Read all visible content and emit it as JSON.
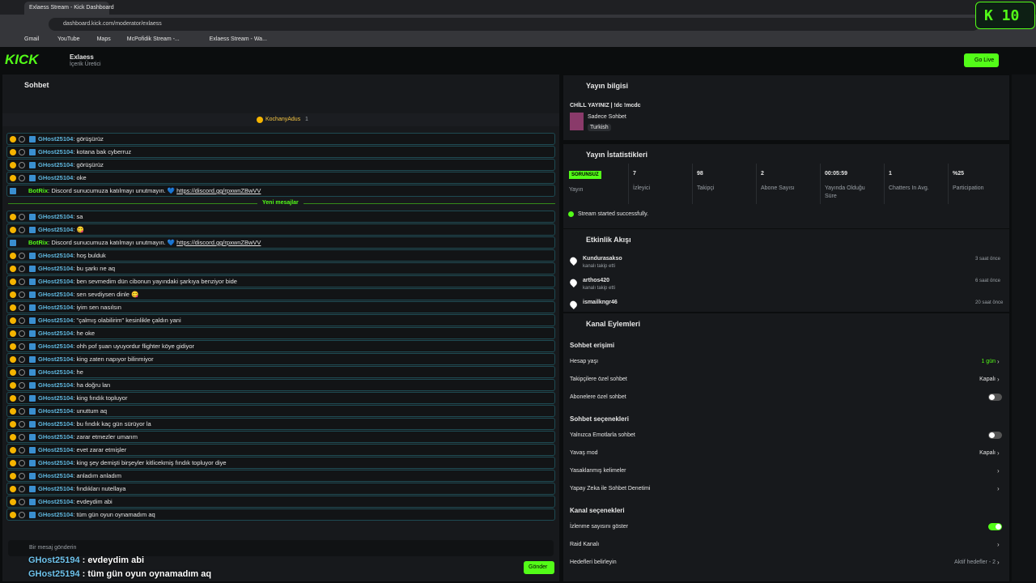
{
  "browser": {
    "tab_title": "Exlaess Stream - Kick Dashboard",
    "url": "dashboard.kick.com/moderator/exlaess",
    "bookmarks": [
      "Gmail",
      "YouTube",
      "Maps",
      "McPofidik Stream -...",
      "Exlaess Stream - Wa..."
    ]
  },
  "header": {
    "logo": "KICK",
    "channel_name": "Exlaess",
    "role": "İçerik Üretici",
    "go_live": "Go Live"
  },
  "overlay_badge": "K 10",
  "chat": {
    "title": "Sohbet",
    "pinned_user": "KochanyAdus",
    "pinned_count": 1,
    "divider": "Yeni mesajlar",
    "messages_before": [
      {
        "user": "GHost25104",
        "text": ": görüşürüz"
      },
      {
        "user": "GHost25104",
        "text": ": kotana bak cyberruz"
      },
      {
        "user": "GHost25104",
        "text": ": görüşürüz"
      },
      {
        "user": "GHost25104",
        "text": ": oke"
      },
      {
        "user": "BotRix",
        "text": ": Discord sunucumuza katılmayı unutmayın. 💙",
        "link": "https://discord.gg/rpxwnZBwVV"
      }
    ],
    "messages_after": [
      {
        "user": "GHost25104",
        "text": ": sa"
      },
      {
        "user": "GHost25104",
        "text": ": 😋"
      },
      {
        "user": "BotRix",
        "text": ": Discord sunucumuza katılmayı unutmayın. 💙",
        "link": "https://discord.gg/rpxwnZBwVV"
      },
      {
        "user": "GHost25104",
        "text": ": hoş bulduk"
      },
      {
        "user": "GHost25104",
        "text": ": bu şarkı ne aq"
      },
      {
        "user": "GHost25104",
        "text": ": ben sevmedim dün cibonun yayındaki şarkıya benziyor bide"
      },
      {
        "user": "GHost25104",
        "text": ": sen sevdiysen dinle 😋"
      },
      {
        "user": "GHost25104",
        "text": ": iyim sen nasılsın"
      },
      {
        "user": "GHost25104",
        "text": ": \"çalmış olabilirim\" kesinlikle çaldın yani"
      },
      {
        "user": "GHost25104",
        "text": ": he oke"
      },
      {
        "user": "GHost25104",
        "text": ": ohh pof şuan uyuyordur flighter köye gidiyor"
      },
      {
        "user": "GHost25104",
        "text": ": king zaten napıyor bilinmiyor"
      },
      {
        "user": "GHost25104",
        "text": ": he"
      },
      {
        "user": "GHost25104",
        "text": ": ha doğru lan"
      },
      {
        "user": "GHost25104",
        "text": ": king fındık topluyor"
      },
      {
        "user": "GHost25104",
        "text": ": unuttum aq"
      },
      {
        "user": "GHost25104",
        "text": ": bu fındık kaç gün sürüyor la"
      },
      {
        "user": "GHost25104",
        "text": ": zarar etmezler umarım"
      },
      {
        "user": "GHost25104",
        "text": ": evet zarar etmişler"
      },
      {
        "user": "GHost25104",
        "text": ": king şey demişti birşeyler kitlicekmiş fındık topluyor diye"
      },
      {
        "user": "GHost25104",
        "text": ": anladım anladım"
      },
      {
        "user": "GHost25104",
        "text": ": fındıkları nutellaya"
      },
      {
        "user": "GHost25104",
        "text": ": evdeydim abi"
      },
      {
        "user": "GHost25104",
        "text": ": tüm gün oyun oynamadım aq"
      }
    ],
    "input_placeholder": "Bir mesaj gönderin",
    "send": "Gönder"
  },
  "overlay_chat": [
    {
      "user": "GHost25194",
      "text": ": evdeydim abi"
    },
    {
      "user": "GHost25194",
      "text": ": tüm gün oyun oynamadım aq"
    }
  ],
  "stream_info": {
    "title": "Yayın bilgisi",
    "stream_title": "CHİLL YAYINIZ | !dc !mcdc",
    "category": "Sadece Sohbet",
    "tag": "Turkish"
  },
  "stats": {
    "title": "Yayın İstatistikleri",
    "status": "SORUNSUZ",
    "status_label": "Yayın",
    "items": [
      {
        "value": 7,
        "label": "İzleyici"
      },
      {
        "value": 98,
        "label": "Takipçi"
      },
      {
        "value": 2,
        "label": "Abone Sayısı"
      },
      {
        "value": "00:05:59",
        "label": "Yayında Olduğu Süre"
      },
      {
        "value": 1,
        "label": "Chatters In Avg."
      },
      {
        "value": "%25",
        "label": "Participation"
      }
    ],
    "notice": "Stream started successfully."
  },
  "activity": {
    "title": "Etkinlik Akışı",
    "events": [
      {
        "user": "Kundurasakso",
        "action": "kanalı takip etti",
        "time": "3 saat önce"
      },
      {
        "user": "arthos420",
        "action": "kanalı takip etti",
        "time": "6 saat önce"
      },
      {
        "user": "ismailkngr46",
        "time": "20 saat önce"
      }
    ]
  },
  "actions": {
    "title": "Kanal Eylemleri",
    "sections": [
      {
        "title": "Sohbet erişimi",
        "rows": [
          {
            "label": "Hesap yaşı",
            "value": "1 gün"
          },
          {
            "label": "Takipçilere özel sohbet",
            "value": "Kapalı"
          },
          {
            "label": "Abonelere özel sohbet",
            "toggle": false
          }
        ]
      },
      {
        "title": "Sohbet seçenekleri",
        "rows": [
          {
            "label": "Yalnızca Emotlarla sohbet",
            "toggle": false
          },
          {
            "label": "Yavaş mod",
            "value": "Kapalı"
          },
          {
            "label": "Yasaklanmış kelimeler"
          },
          {
            "label": "Yapay Zeka ile Sohbet Denetimi"
          }
        ]
      },
      {
        "title": "Kanal seçenekleri",
        "rows": [
          {
            "label": "İzlenme sayısını göster",
            "toggle": true
          },
          {
            "label": "Raid Kanalı"
          },
          {
            "label": "Hedefleri belirleyin",
            "value": "Aktif hedefler - 2"
          }
        ]
      }
    ]
  }
}
